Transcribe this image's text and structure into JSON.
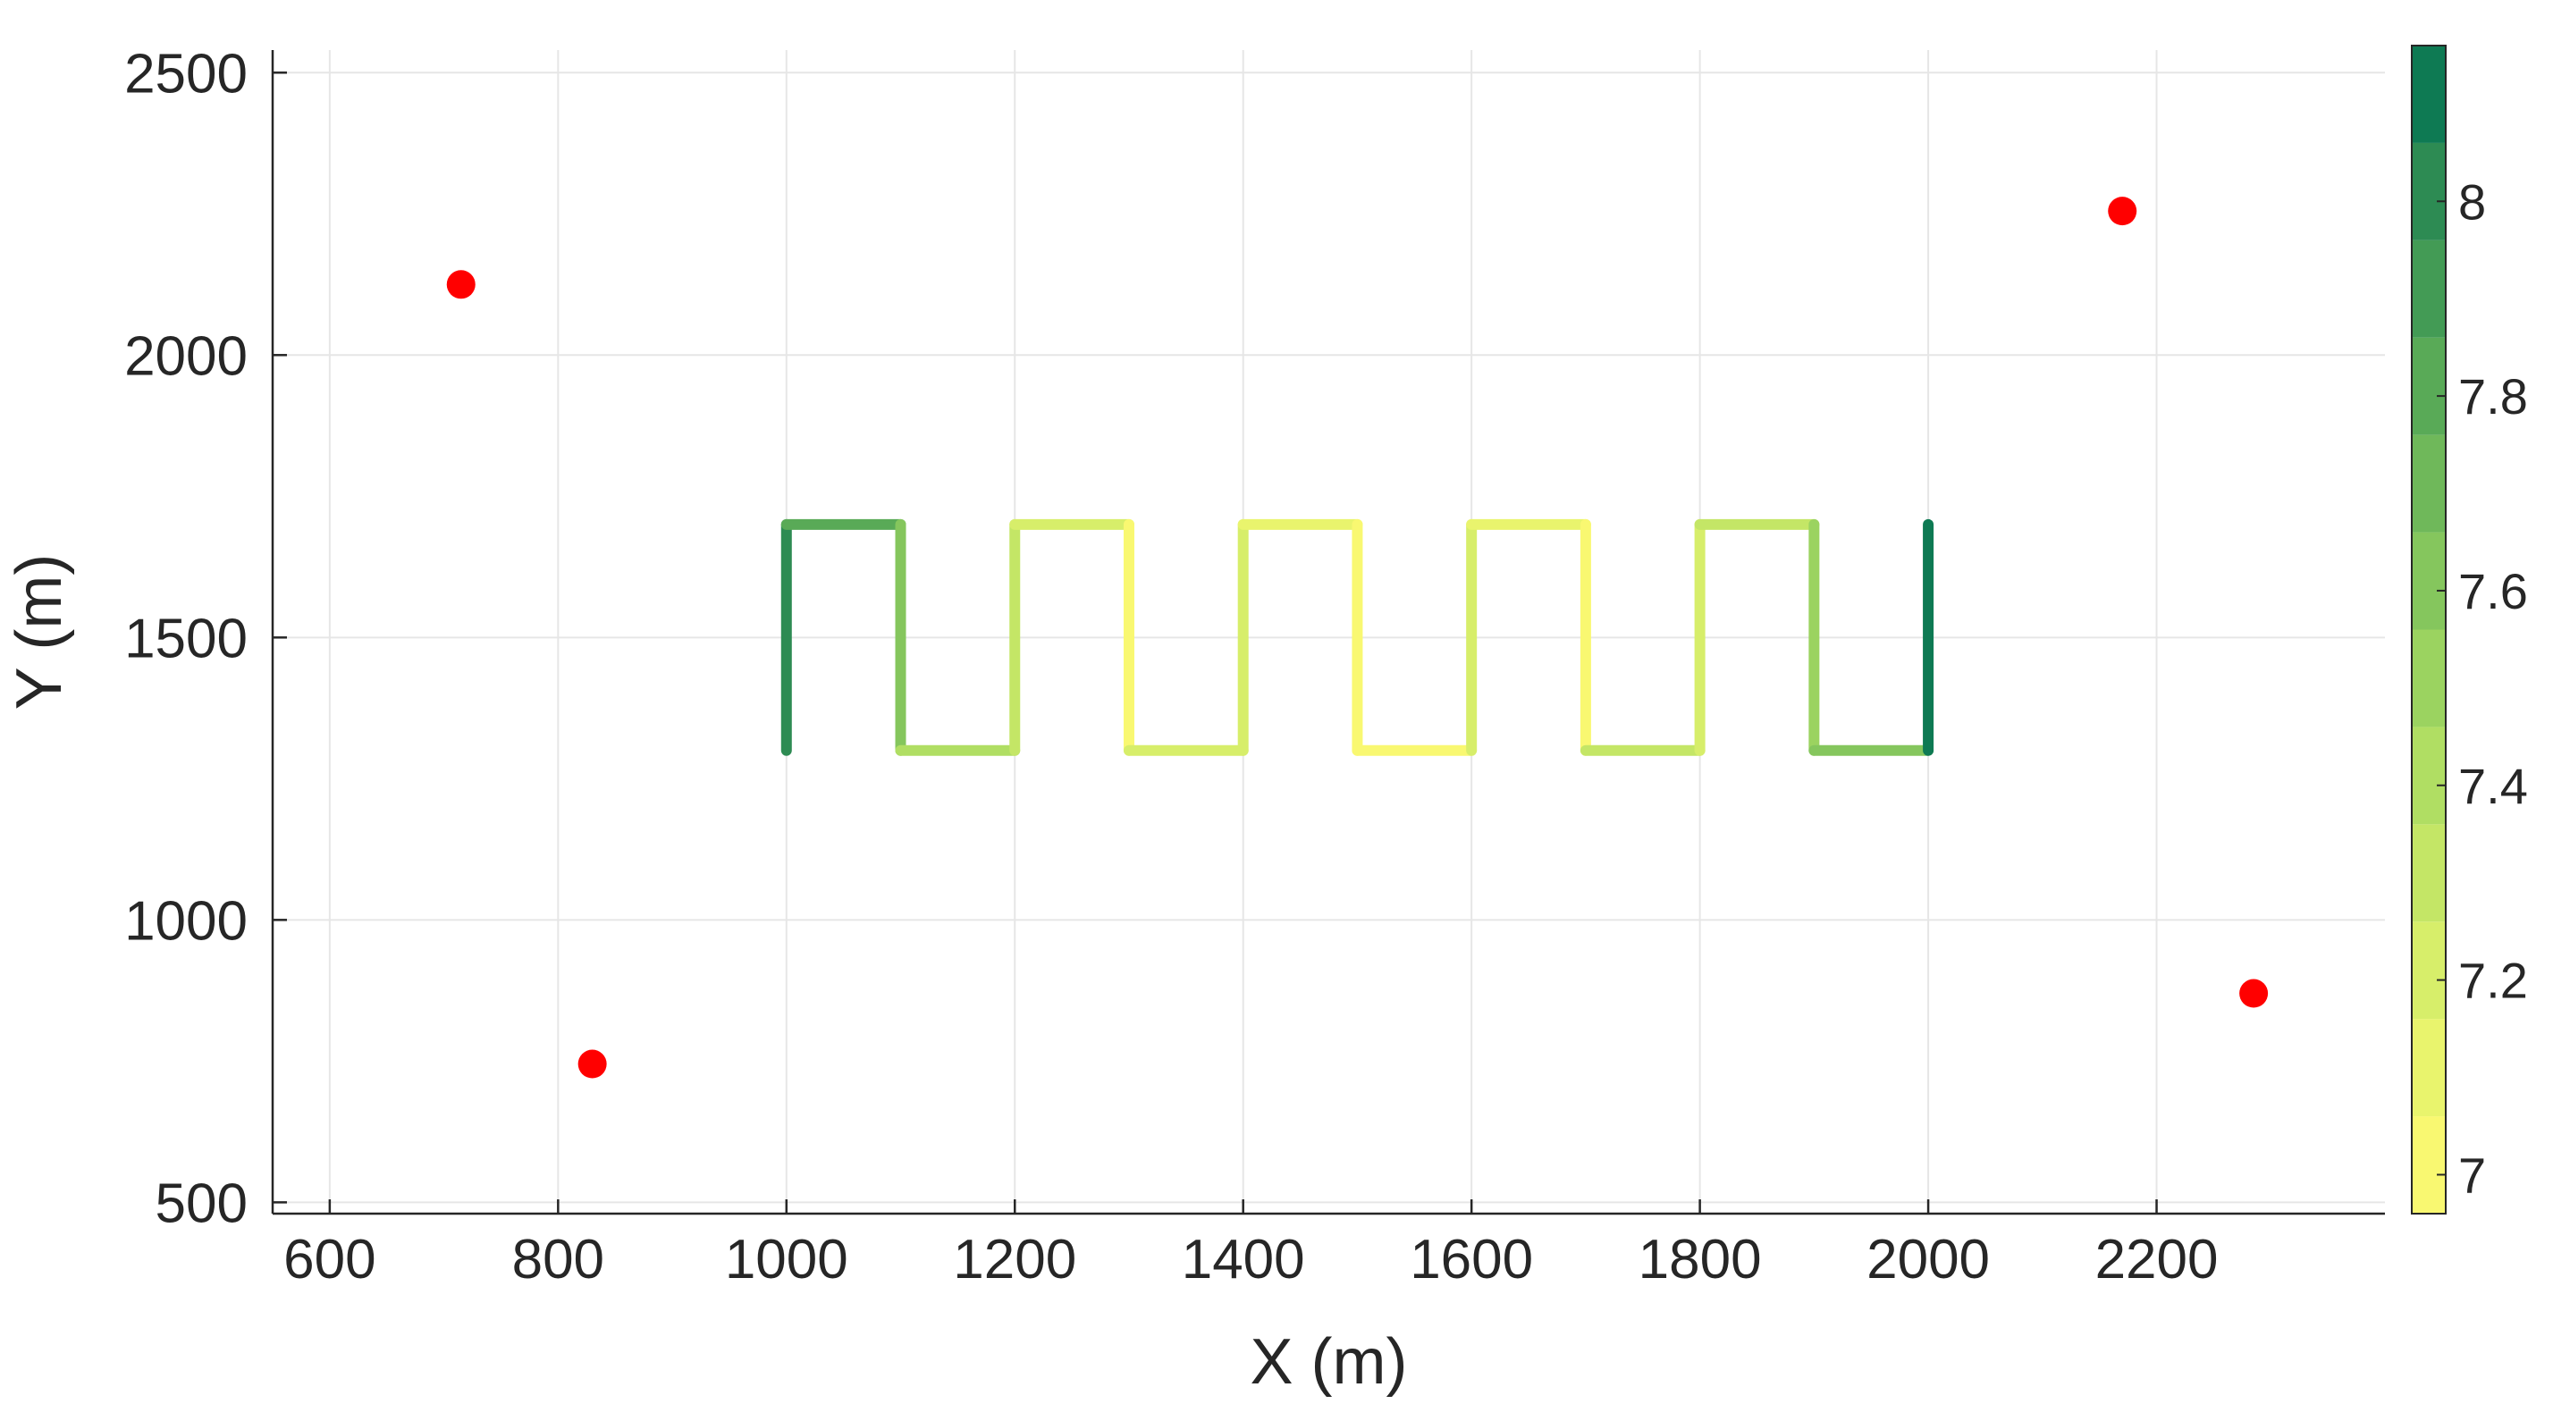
{
  "chart_data": {
    "type": "scatter",
    "title": "",
    "xlabel": "X (m)",
    "ylabel": "Y (m)",
    "xlim": [
      550,
      2400
    ],
    "ylim": [
      480,
      2540
    ],
    "xticks": [
      600,
      800,
      1000,
      1200,
      1400,
      1600,
      1800,
      2000,
      2200
    ],
    "yticks": [
      500,
      1000,
      1500,
      2000,
      2500
    ],
    "grid": true,
    "colorbar": {
      "position": "right",
      "range": [
        6.96,
        8.16
      ],
      "ticks": [
        7,
        7.2,
        7.4,
        7.6,
        7.8,
        8
      ],
      "levels": 12,
      "colors": [
        "#f9f871",
        "#e9f46d",
        "#d7ee6a",
        "#c4e666",
        "#b0de63",
        "#9bd360",
        "#85c65d",
        "#6fb85a",
        "#59aa57",
        "#439b55",
        "#2d8b53",
        "#0e7a53"
      ]
    },
    "anchors": {
      "marker_color": "#ff0000",
      "points": [
        {
          "x": 715,
          "y": 2125
        },
        {
          "x": 830,
          "y": 745
        },
        {
          "x": 2170,
          "y": 2255
        },
        {
          "x": 2285,
          "y": 870
        }
      ]
    },
    "trajectory": {
      "description_of_path": "lawnmower path from (1000,1300) up to y=1700, across, down to 1300, repeating to x=2000",
      "vertices": [
        {
          "x": 1000,
          "y": 1300
        },
        {
          "x": 1000,
          "y": 1700
        },
        {
          "x": 1100,
          "y": 1700
        },
        {
          "x": 1100,
          "y": 1300
        },
        {
          "x": 1200,
          "y": 1300
        },
        {
          "x": 1200,
          "y": 1700
        },
        {
          "x": 1300,
          "y": 1700
        },
        {
          "x": 1300,
          "y": 1300
        },
        {
          "x": 1400,
          "y": 1300
        },
        {
          "x": 1400,
          "y": 1700
        },
        {
          "x": 1500,
          "y": 1700
        },
        {
          "x": 1500,
          "y": 1300
        },
        {
          "x": 1600,
          "y": 1300
        },
        {
          "x": 1600,
          "y": 1700
        },
        {
          "x": 1700,
          "y": 1700
        },
        {
          "x": 1700,
          "y": 1300
        },
        {
          "x": 1800,
          "y": 1300
        },
        {
          "x": 1800,
          "y": 1700
        },
        {
          "x": 1900,
          "y": 1700
        },
        {
          "x": 1900,
          "y": 1300
        },
        {
          "x": 2000,
          "y": 1300
        },
        {
          "x": 2000,
          "y": 1700
        }
      ],
      "segment_values": [
        8.05,
        7.8,
        7.6,
        7.45,
        7.3,
        7.2,
        7.05,
        7.25,
        7.2,
        7.15,
        7.05,
        7.05,
        7.2,
        7.1,
        7.05,
        7.3,
        7.25,
        7.3,
        7.55,
        7.6,
        8.1
      ]
    }
  }
}
